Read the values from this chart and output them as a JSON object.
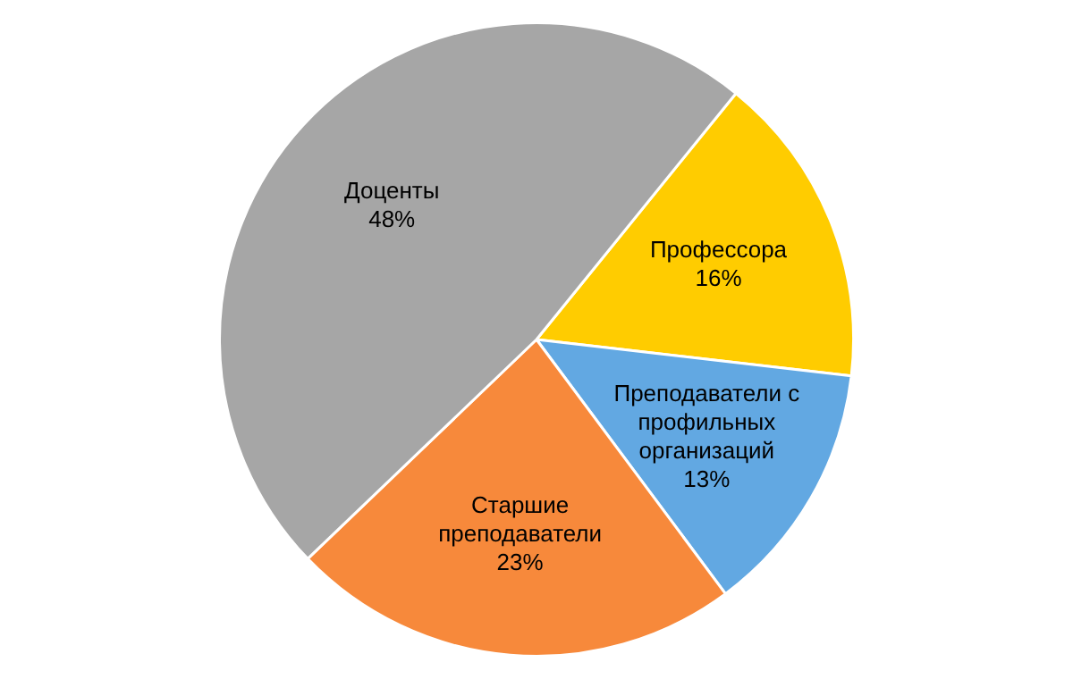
{
  "chart_data": {
    "type": "pie",
    "categories": [
      "Профессора",
      "Преподаватели с профильных организаций",
      "Старшие преподаватели",
      "Доценты"
    ],
    "values": [
      16,
      13,
      23,
      48
    ],
    "colors": [
      "#ffcc00",
      "#62a8e2",
      "#f7893b",
      "#a6a6a6"
    ],
    "value_labels": [
      "16%",
      "13%",
      "23%",
      "48%"
    ],
    "legend": false
  }
}
